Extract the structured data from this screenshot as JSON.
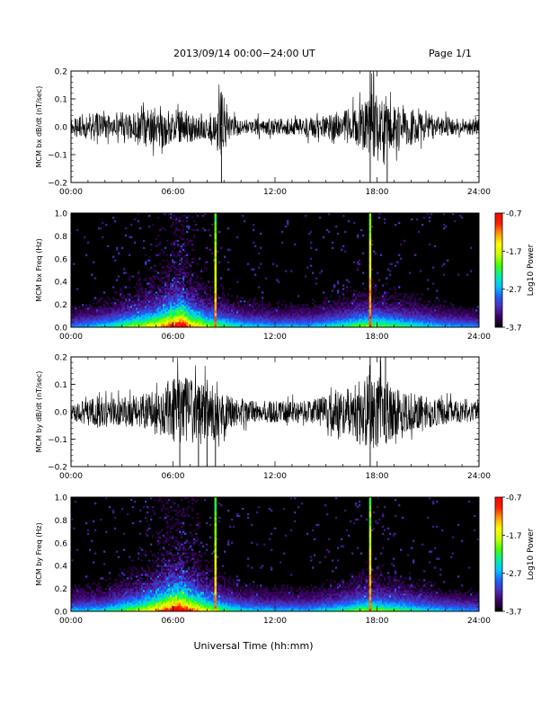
{
  "header": {
    "title": "2013/09/14  00:00−24:00 UT",
    "page": "Page 1/1"
  },
  "xlabel": "Universal Time (hh:mm)",
  "x_ticks": [
    "00:00",
    "06:00",
    "12:00",
    "18:00",
    "24:00"
  ],
  "colorbar": {
    "label": "Log10 Power",
    "ticks": [
      "-0.7",
      "-1.7",
      "-2.7",
      "-3.7"
    ],
    "range": [
      -3.7,
      -0.7
    ],
    "colormap": [
      "#000000",
      "#3a0060",
      "#4b2db5",
      "#1f5fff",
      "#00c8ff",
      "#00f0a0",
      "#44ff00",
      "#c8ff00",
      "#ffff00",
      "#ffa000",
      "#ff2000",
      "#ff0000"
    ]
  },
  "chart_data": [
    {
      "type": "line",
      "ylabel": "MCM bx dB/dt (nT/sec)",
      "xlim": [
        0,
        24
      ],
      "ylim": [
        -0.2,
        0.2
      ],
      "y_ticks": [
        -0.2,
        -0.1,
        0.0,
        0.1,
        0.2
      ],
      "y_tick_labels": [
        "−0.2",
        "−0.1",
        "0.0",
        "0.1",
        "0.2"
      ],
      "series": [
        {
          "x": [
            0,
            0.5,
            1,
            1.5,
            2,
            2.5,
            3,
            3.5,
            4,
            4.5,
            5,
            5.5,
            6,
            6.5,
            7,
            7.5,
            8,
            8.5,
            8.9,
            9.2,
            9.5,
            10,
            10.5,
            11,
            11.5,
            12,
            12.5,
            13,
            13.5,
            14,
            14.5,
            15,
            15.5,
            16,
            16.5,
            17,
            17.5,
            17.8,
            18,
            18.5,
            19,
            19.5,
            20,
            20.5,
            21,
            21.5,
            22,
            22.5,
            23,
            23.5,
            24
          ],
          "envelope": [
            0.03,
            0.04,
            0.05,
            0.05,
            0.04,
            0.04,
            0.04,
            0.05,
            0.06,
            0.06,
            0.07,
            0.08,
            0.05,
            0.06,
            0.06,
            0.05,
            0.05,
            0.06,
            0.16,
            0.05,
            0.04,
            0.03,
            0.03,
            0.03,
            0.03,
            0.03,
            0.03,
            0.03,
            0.03,
            0.04,
            0.04,
            0.04,
            0.05,
            0.06,
            0.07,
            0.08,
            0.09,
            0.22,
            0.09,
            0.09,
            0.08,
            0.07,
            0.07,
            0.05,
            0.05,
            0.04,
            0.04,
            0.03,
            0.03,
            0.03,
            0.03
          ]
        }
      ],
      "spikes": [
        {
          "x": 8.85,
          "y": -0.2
        },
        {
          "x": 17.6,
          "y": 0.2
        },
        {
          "x": 17.6,
          "y": -0.2
        },
        {
          "x": 18.6,
          "y": -0.2
        }
      ]
    },
    {
      "type": "heatmap",
      "ylabel": "MCM bx Freq (Hz)",
      "xlim": [
        0,
        24
      ],
      "ylim": [
        0.0,
        1.0
      ],
      "y_ticks": [
        0.0,
        0.2,
        0.4,
        0.6,
        0.8,
        1.0
      ],
      "y_tick_labels": [
        "0.0",
        "0.2",
        "0.4",
        "0.6",
        "0.8",
        "1.0"
      ],
      "value_range": [
        -3.7,
        -0.7
      ],
      "activity_x": [
        0,
        2,
        3,
        4,
        5,
        6,
        6.5,
        7,
        8,
        9,
        10,
        12,
        14,
        16,
        17,
        18,
        19,
        20,
        22,
        24
      ],
      "activity": [
        0.3,
        0.4,
        0.5,
        0.6,
        0.7,
        0.9,
        1.0,
        0.8,
        0.6,
        0.5,
        0.4,
        0.35,
        0.35,
        0.45,
        0.55,
        0.55,
        0.5,
        0.45,
        0.35,
        0.3
      ],
      "vertical_lines": [
        {
          "x": 8.5,
          "value": -1.2
        },
        {
          "x": 17.6,
          "value": -1.0
        }
      ]
    },
    {
      "type": "line",
      "ylabel": "MCM by dB/dt (nT/sec)",
      "xlim": [
        0,
        24
      ],
      "ylim": [
        -0.2,
        0.2
      ],
      "y_ticks": [
        -0.2,
        -0.1,
        0.0,
        0.1,
        0.2
      ],
      "y_tick_labels": [
        "−0.2",
        "−0.1",
        "0.0",
        "0.1",
        "0.2"
      ],
      "series": [
        {
          "x": [
            0,
            0.5,
            1,
            1.5,
            2,
            2.5,
            3,
            3.5,
            4,
            4.5,
            5,
            5.5,
            6,
            6.5,
            7,
            7.5,
            8,
            8.5,
            9,
            9.5,
            10,
            10.5,
            11,
            11.5,
            12,
            12.5,
            13,
            13.5,
            14,
            14.5,
            15,
            15.5,
            16,
            16.5,
            17,
            17.5,
            18,
            18.5,
            19,
            19.5,
            20,
            20.5,
            21,
            21.5,
            22,
            22.5,
            23,
            23.5,
            24
          ],
          "envelope": [
            0.03,
            0.04,
            0.05,
            0.06,
            0.05,
            0.05,
            0.05,
            0.06,
            0.06,
            0.07,
            0.08,
            0.1,
            0.12,
            0.13,
            0.12,
            0.1,
            0.12,
            0.1,
            0.07,
            0.06,
            0.05,
            0.04,
            0.04,
            0.04,
            0.04,
            0.04,
            0.04,
            0.04,
            0.04,
            0.05,
            0.06,
            0.07,
            0.08,
            0.1,
            0.12,
            0.14,
            0.13,
            0.12,
            0.1,
            0.08,
            0.07,
            0.06,
            0.06,
            0.05,
            0.05,
            0.04,
            0.04,
            0.04,
            0.04
          ]
        }
      ],
      "spikes": [
        {
          "x": 6.4,
          "y": -0.2
        },
        {
          "x": 7.5,
          "y": -0.2
        },
        {
          "x": 8.0,
          "y": -0.2
        },
        {
          "x": 8.5,
          "y": -0.2
        },
        {
          "x": 17.6,
          "y": 0.2
        },
        {
          "x": 17.6,
          "y": -0.2
        },
        {
          "x": 18.2,
          "y": 0.2
        },
        {
          "x": 18.5,
          "y": 0.2
        }
      ]
    },
    {
      "type": "heatmap",
      "ylabel": "MCM by Freq (Hz)",
      "xlim": [
        0,
        24
      ],
      "ylim": [
        0.0,
        1.0
      ],
      "y_ticks": [
        0.0,
        0.2,
        0.4,
        0.6,
        0.8,
        1.0
      ],
      "y_tick_labels": [
        "0.0",
        "0.2",
        "0.4",
        "0.6",
        "0.8",
        "1.0"
      ],
      "value_range": [
        -3.7,
        -0.7
      ],
      "activity_x": [
        0,
        2,
        3,
        4,
        5,
        6,
        6.5,
        7,
        8,
        9,
        10,
        12,
        14,
        16,
        17,
        18,
        19,
        20,
        22,
        24
      ],
      "activity": [
        0.35,
        0.4,
        0.5,
        0.6,
        0.75,
        0.95,
        1.0,
        0.85,
        0.65,
        0.5,
        0.4,
        0.35,
        0.35,
        0.45,
        0.55,
        0.55,
        0.5,
        0.45,
        0.35,
        0.3
      ],
      "vertical_lines": [
        {
          "x": 8.5,
          "value": -1.2
        },
        {
          "x": 17.6,
          "value": -1.1
        }
      ]
    }
  ]
}
